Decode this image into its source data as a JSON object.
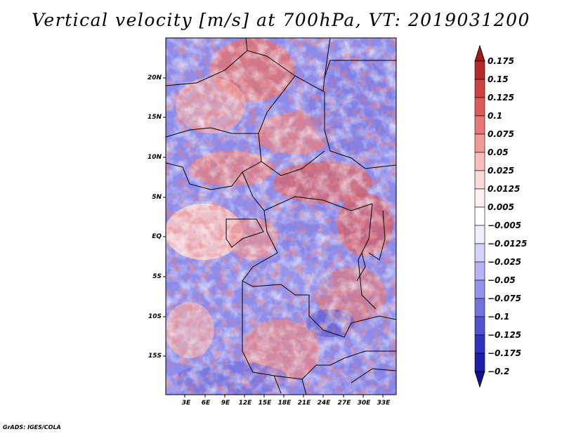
{
  "title": "Vertical velocity [m/s] at 700hPa, VT: 2019031200",
  "credit": "GrADS: IGES/COLA",
  "lat_ticks": [
    "20N",
    "15N",
    "10N",
    "5N",
    "EQ",
    "5S",
    "10S",
    "15S"
  ],
  "lat_values": [
    20,
    15,
    10,
    5,
    0,
    -5,
    -10,
    -15
  ],
  "lon_ticks": [
    "3E",
    "6E",
    "9E",
    "12E",
    "15E",
    "18E",
    "21E",
    "24E",
    "27E",
    "30E",
    "33E"
  ],
  "lon_values": [
    3,
    6,
    9,
    12,
    15,
    18,
    21,
    24,
    27,
    30,
    33
  ],
  "colorbar": {
    "labels": [
      "0.175",
      "0.15",
      "0.125",
      "0.1",
      "0.075",
      "0.05",
      "0.025",
      "0.0125",
      "0.005",
      "−0.005",
      "−0.0125",
      "−0.025",
      "−0.05",
      "−0.075",
      "−0.1",
      "−0.125",
      "−0.175",
      "−0.2"
    ],
    "colors": [
      "#a01818",
      "#b82a2a",
      "#cf4040",
      "#dc5a5a",
      "#e87878",
      "#f09a9a",
      "#f7bcbc",
      "#fcdada",
      "#fff0f0",
      "#ffffff",
      "#eeeeff",
      "#d2d2fa",
      "#b4b4f2",
      "#9494ea",
      "#7272e0",
      "#5252d2",
      "#3232c0",
      "#1e1eaa",
      "#12128c"
    ],
    "top_arrow_color": "#a01818",
    "bottom_arrow_color": "#12128c"
  },
  "colors": {
    "positive": "#d24a4a",
    "negative": "#5a5ae0",
    "border": "#000000"
  }
}
